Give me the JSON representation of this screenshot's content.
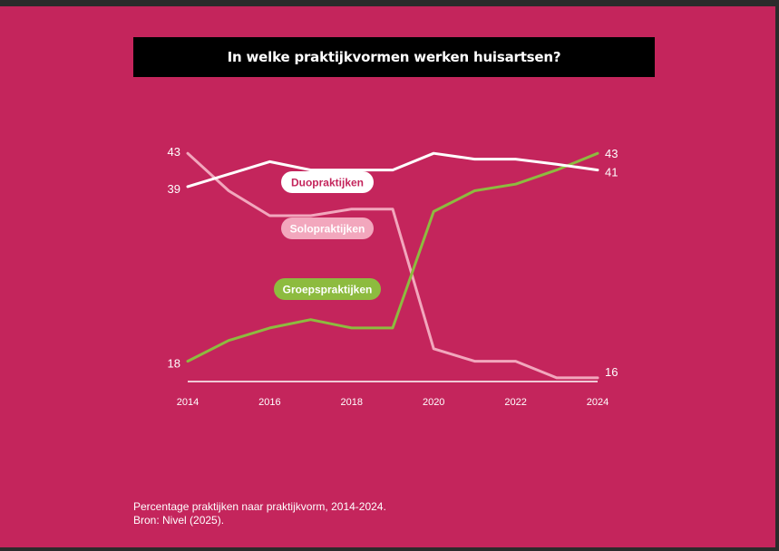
{
  "colors": {
    "background": "#c4255c",
    "title_bg": "#000000",
    "duo": "#ffffff",
    "solo": "#f2a7bd",
    "groep": "#8dbb3f",
    "axis": "#ffffff"
  },
  "title": "In welke praktijkvormen werken huisartsen?",
  "footer": {
    "line1": "Percentage praktijken naar praktijkvorm, 2014-2024.",
    "line2": "Bron: Nivel (2025)."
  },
  "chart_data": {
    "type": "line",
    "x": [
      2014,
      2015,
      2016,
      2017,
      2018,
      2019,
      2020,
      2021,
      2022,
      2023,
      2024
    ],
    "x_ticks": [
      "2014",
      "2016",
      "2018",
      "2020",
      "2022",
      "2024"
    ],
    "ylim": [
      10,
      50
    ],
    "grid": false,
    "series": [
      {
        "name": "Duopraktijken",
        "color": "#ffffff",
        "values": [
          39,
          40.5,
          42,
          41,
          41,
          41,
          43,
          42.3,
          42.3,
          41.7,
          41
        ],
        "start_label": "39",
        "end_label": "41"
      },
      {
        "name": "Solopraktijken",
        "color": "#f2a7bd",
        "values": [
          43,
          38.5,
          35.5,
          35.5,
          36.3,
          36.3,
          19.5,
          18,
          18,
          16,
          16
        ],
        "start_label": "43",
        "end_label": "16"
      },
      {
        "name": "Groepspraktijken",
        "color": "#8dbb3f",
        "values": [
          18,
          20.5,
          22,
          23,
          22,
          22,
          36,
          38.5,
          39.3,
          41,
          43
        ],
        "start_label": "18",
        "end_label": "43"
      }
    ]
  }
}
